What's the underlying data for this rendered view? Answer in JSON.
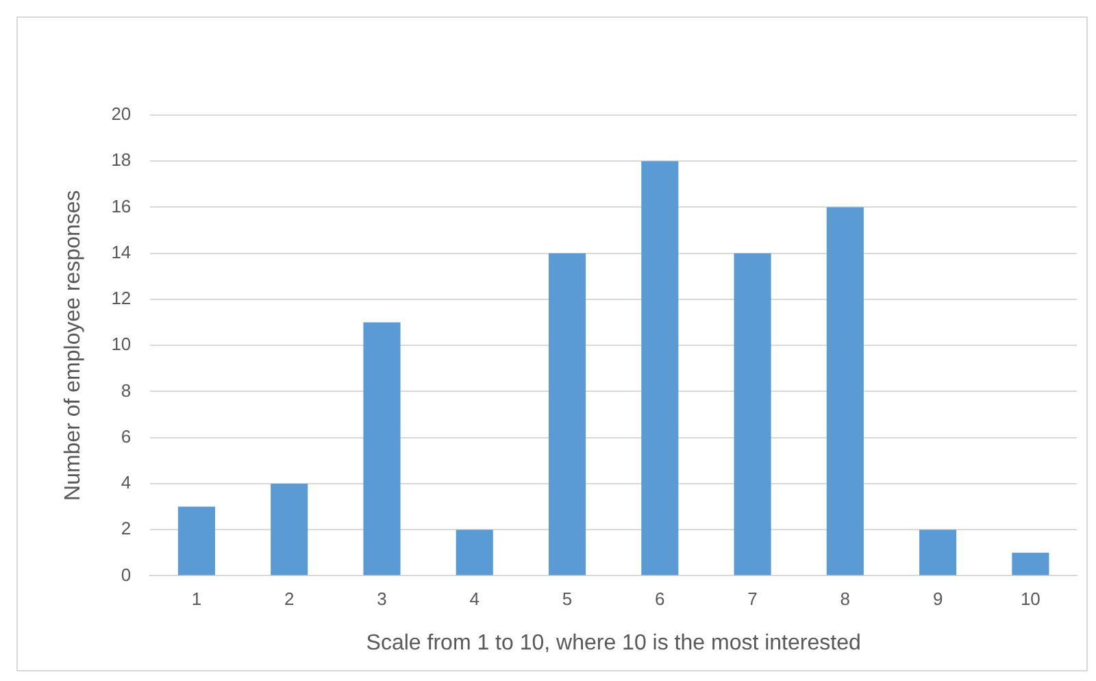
{
  "chart_data": {
    "type": "bar",
    "xlabel": "Scale from 1 to 10, where 10 is the most interested",
    "ylabel": "Number of employee responses",
    "categories": [
      "1",
      "2",
      "3",
      "4",
      "5",
      "6",
      "7",
      "8",
      "9",
      "10"
    ],
    "values": [
      3,
      4,
      11,
      2,
      14,
      18,
      14,
      16,
      2,
      1
    ],
    "color": "#5b9bd5",
    "ylim": [
      0,
      20
    ],
    "yticks": [
      0,
      2,
      4,
      6,
      8,
      10,
      12,
      14,
      16,
      18,
      20
    ],
    "grid": "y",
    "legend": false
  }
}
